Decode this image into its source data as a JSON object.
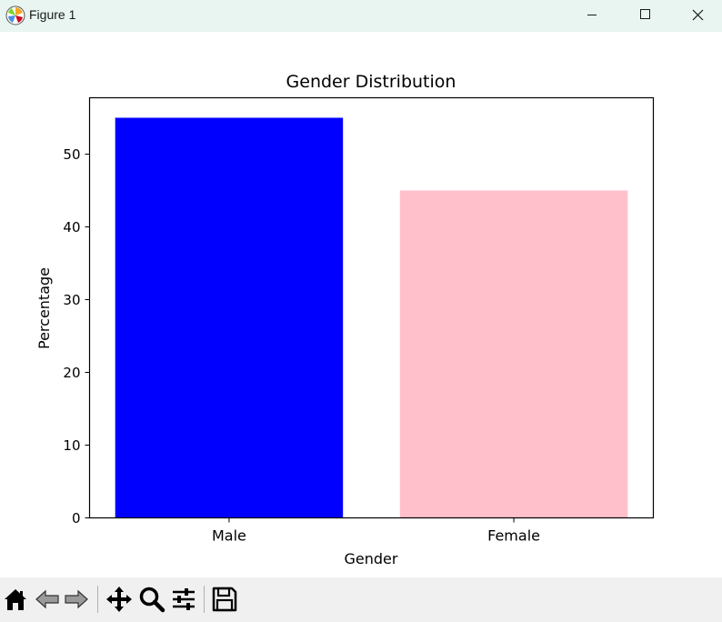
{
  "window": {
    "title": "Figure 1"
  },
  "toolbar": {
    "tools": [
      "home-icon",
      "back-icon",
      "forward-icon",
      "pan-icon",
      "zoom-icon",
      "configure-subplots-icon",
      "save-icon"
    ]
  },
  "chart_data": {
    "type": "bar",
    "title": "Gender Distribution",
    "xlabel": "Gender",
    "ylabel": "Percentage",
    "categories": [
      "Male",
      "Female"
    ],
    "values": [
      55,
      45
    ],
    "colors": [
      "#0000ff",
      "#ffc0cb"
    ],
    "ylim": [
      0,
      57.75
    ],
    "yticks": [
      0,
      10,
      20,
      30,
      40,
      50
    ],
    "grid": false
  }
}
